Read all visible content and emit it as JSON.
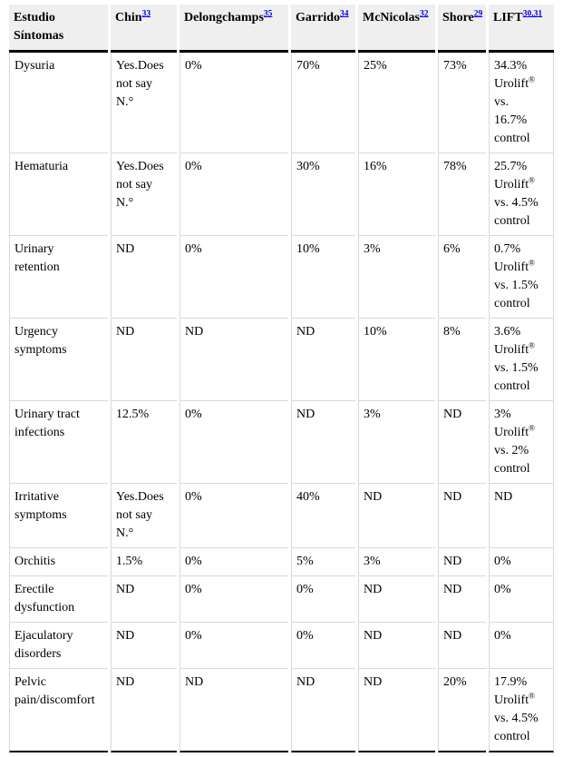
{
  "table": {
    "columns": [
      {
        "label": "Estudio\nSíntomas",
        "ref": ""
      },
      {
        "label": "Chin",
        "ref": "33"
      },
      {
        "label": "Delongchamps",
        "ref": "35"
      },
      {
        "label": "Garrido",
        "ref": "34"
      },
      {
        "label": "McNicolas",
        "ref": "32"
      },
      {
        "label": "Shore",
        "ref": "29"
      },
      {
        "label": "LIFT",
        "ref": "30,31"
      }
    ],
    "rows": [
      {
        "cells": [
          "Dysuria",
          "Yes.Does\nnot say\nN.°",
          "0%",
          "70%",
          "25%",
          "73%",
          "34.3%\nUrolift®\nvs.\n16.7%\ncontrol"
        ]
      },
      {
        "cells": [
          "Hematuria",
          "Yes.Does\nnot say\nN.°",
          "0%",
          "30%",
          "16%",
          "78%",
          "25.7%\nUrolift®\nvs. 4.5%\ncontrol"
        ]
      },
      {
        "cells": [
          "Urinary\nretention",
          "ND",
          "0%",
          "10%",
          "3%",
          "6%",
          "0.7%\nUrolift®\nvs. 1.5%\ncontrol"
        ]
      },
      {
        "cells": [
          "Urgency\nsymptoms",
          "ND",
          "ND",
          "ND",
          "10%",
          "8%",
          "3.6%\nUrolift®\nvs. 1.5%\ncontrol"
        ]
      },
      {
        "cells": [
          "Urinary tract\ninfections",
          "12.5%",
          "0%",
          "ND",
          "3%",
          "ND",
          "3%\nUrolift®\nvs. 2%\ncontrol"
        ]
      },
      {
        "cells": [
          "Irritative\nsymptoms",
          "Yes.Does\nnot say\nN.°",
          "0%",
          "40%",
          "ND",
          "ND",
          "ND"
        ]
      },
      {
        "cells": [
          "Orchitis",
          "1.5%",
          "0%",
          "5%",
          "3%",
          "ND",
          "0%"
        ]
      },
      {
        "cells": [
          "Erectile\ndysfunction",
          "ND",
          "0%",
          "0%",
          "ND",
          "ND",
          "0%"
        ]
      },
      {
        "cells": [
          "Ejaculatory\ndisorders",
          "ND",
          "0%",
          "0%",
          "ND",
          "ND",
          "0%"
        ]
      },
      {
        "cells": [
          "Pelvic\npain/discomfort",
          "ND",
          "ND",
          "ND",
          "ND",
          "20%",
          "17.9%\nUrolift®\nvs. 4.5%\ncontrol"
        ]
      }
    ],
    "colors": {
      "header_bg": "#efefef",
      "grid_line": "#d9d9d9",
      "rule_line": "#000000",
      "link_blue": "#0000ee",
      "text": "#000000"
    }
  }
}
